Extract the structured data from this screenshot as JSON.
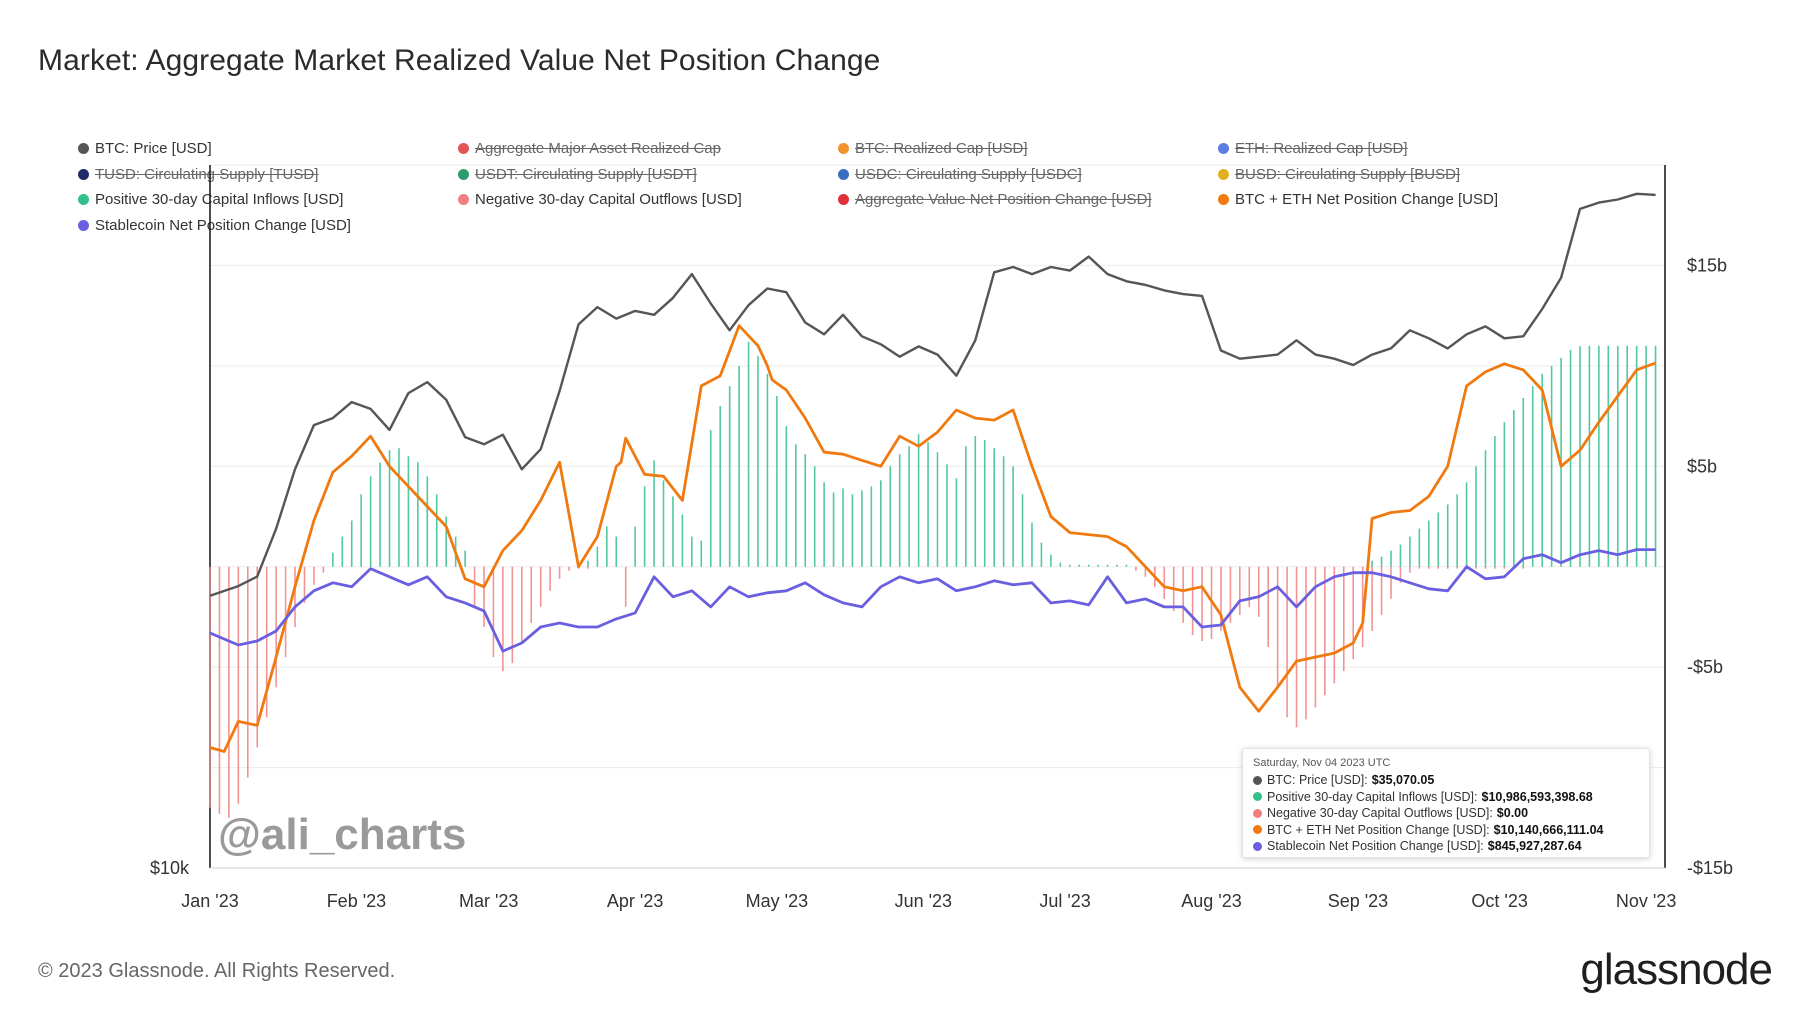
{
  "title": "Market: Aggregate Market Realized Value Net Position Change",
  "footer": "© 2023 Glassnode. All Rights Reserved.",
  "brand": "glassnode",
  "watermark": "@ali_charts",
  "legend": [
    {
      "label": "BTC: Price [USD]",
      "color": "#555555",
      "active": true
    },
    {
      "label": "Aggregate Major Asset Realized Cap",
      "color": "#e25555",
      "active": false
    },
    {
      "label": "BTC: Realized Cap [USD]",
      "color": "#f0932b",
      "active": false
    },
    {
      "label": "ETH: Realized Cap [USD]",
      "color": "#5b7de0",
      "active": false
    },
    {
      "label": "TUSD: Circulating Supply [TUSD]",
      "color": "#1f2a6b",
      "active": false
    },
    {
      "label": "USDT: Circulating Supply [USDT]",
      "color": "#2a9d6f",
      "active": false
    },
    {
      "label": "USDC: Circulating Supply [USDC]",
      "color": "#3a6fc0",
      "active": false
    },
    {
      "label": "BUSD: Circulating Supply [BUSD]",
      "color": "#e0b020",
      "active": false
    },
    {
      "label": "Positive 30-day Capital Inflows [USD]",
      "color": "#33c08a",
      "active": true
    },
    {
      "label": "Negative 30-day Capital Outflows [USD]",
      "color": "#f08080",
      "active": true
    },
    {
      "label": "Aggregate Value Net Position Change [USD]",
      "color": "#e0303a",
      "active": false
    },
    {
      "label": "BTC + ETH Net Position Change [USD]",
      "color": "#f07a10",
      "active": true
    },
    {
      "label": "Stablecoin Net Position Change [USD]",
      "color": "#6a5fe0",
      "active": true
    }
  ],
  "tooltip": {
    "date": "Saturday, Nov 04 2023 UTC",
    "rows": [
      {
        "label": "BTC: Price [USD]:",
        "value": "$35,070.05",
        "color": "#555555"
      },
      {
        "label": "Positive 30-day Capital Inflows [USD]:",
        "value": "$10,986,593,398.68",
        "color": "#33c08a"
      },
      {
        "label": "Negative 30-day Capital Outflows [USD]:",
        "value": "$0.00",
        "color": "#f08080"
      },
      {
        "label": "BTC + ETH Net Position Change [USD]:",
        "value": "$10,140,666,111.04",
        "color": "#f07a10"
      },
      {
        "label": "Stablecoin Net Position Change [USD]:",
        "value": "$845,927,287.64",
        "color": "#6a5fe0"
      }
    ]
  },
  "chart_data": {
    "type": "line",
    "title": "Market: Aggregate Market Realized Value Net Position Change",
    "x_ticks": [
      "Jan '23",
      "Feb '23",
      "Mar '23",
      "Apr '23",
      "May '23",
      "Jun '23",
      "Jul '23",
      "Aug '23",
      "Sep '23",
      "Oct '23",
      "Nov '23"
    ],
    "x_range_days": [
      0,
      308
    ],
    "left_axis": {
      "label": "$10k",
      "scale": "log",
      "ylim": [
        10000,
        37000
      ]
    },
    "right_axis": {
      "ticks": [
        "$15b",
        "$5b",
        "-$5b",
        "-$15b"
      ],
      "tick_values": [
        15,
        5,
        -5,
        -15
      ],
      "ylim": [
        -15,
        20
      ],
      "unit": "billion USD"
    },
    "series": [
      {
        "name": "BTC: Price [USD]",
        "axis": "left",
        "color": "#555555",
        "x": [
          0,
          6,
          10,
          14,
          18,
          22,
          26,
          30,
          34,
          38,
          42,
          46,
          50,
          54,
          58,
          62,
          66,
          70,
          74,
          78,
          82,
          86,
          90,
          94,
          98,
          102,
          106,
          110,
          114,
          118,
          122,
          126,
          130,
          134,
          138,
          142,
          146,
          150,
          154,
          158,
          162,
          166,
          170,
          174,
          178,
          182,
          186,
          190,
          194,
          198,
          202,
          206,
          210,
          214,
          218,
          222,
          226,
          230,
          234,
          238,
          242,
          246,
          250,
          254,
          258,
          262,
          266,
          270,
          274,
          278,
          282,
          286,
          290,
          294,
          298,
          302,
          306
        ],
        "values": [
          16600,
          16900,
          17200,
          18800,
          21000,
          22800,
          23100,
          23800,
          23500,
          22600,
          24200,
          24700,
          23900,
          22300,
          22000,
          22400,
          21000,
          21800,
          24300,
          27500,
          28400,
          27800,
          28200,
          28000,
          28900,
          30200,
          28600,
          27200,
          28500,
          29400,
          29200,
          27600,
          27000,
          28000,
          26900,
          26500,
          25900,
          26400,
          26000,
          25000,
          26700,
          30300,
          30600,
          30200,
          30600,
          30400,
          31200,
          30200,
          29800,
          29600,
          29300,
          29100,
          29000,
          26200,
          25800,
          25900,
          26000,
          26700,
          26000,
          25800,
          25500,
          26000,
          26300,
          27200,
          26800,
          26300,
          27000,
          27400,
          26800,
          26900,
          28300,
          30000,
          34100,
          34500,
          34700,
          35070,
          35000
        ]
      },
      {
        "name": "BTC + ETH Net Position Change [USD]",
        "axis": "right",
        "color": "#f07a10",
        "x": [
          0,
          3,
          6,
          10,
          14,
          18,
          22,
          26,
          30,
          34,
          38,
          42,
          46,
          50,
          54,
          58,
          62,
          66,
          70,
          74,
          78,
          82,
          86,
          87,
          88,
          92,
          96,
          100,
          104,
          108,
          112,
          116,
          118,
          119,
          122,
          126,
          130,
          134,
          138,
          142,
          146,
          150,
          154,
          158,
          162,
          166,
          170,
          174,
          178,
          182,
          186,
          190,
          194,
          198,
          202,
          206,
          210,
          214,
          218,
          222,
          226,
          230,
          234,
          238,
          242,
          244,
          246,
          250,
          254,
          258,
          262,
          266,
          270,
          274,
          278,
          282,
          286,
          290,
          294,
          298,
          302,
          306
        ],
        "values": [
          -9.0,
          -9.2,
          -7.7,
          -7.9,
          -4.5,
          -1.0,
          2.3,
          4.7,
          5.5,
          6.5,
          5.0,
          4.0,
          3.0,
          2.0,
          -0.6,
          -1.0,
          0.8,
          1.8,
          3.3,
          5.2,
          0.0,
          1.5,
          5.0,
          5.2,
          6.4,
          4.6,
          4.5,
          3.3,
          9.0,
          9.5,
          12.0,
          11.0,
          10.0,
          9.3,
          8.8,
          7.4,
          5.7,
          5.6,
          5.3,
          5.0,
          6.5,
          6.0,
          6.7,
          7.8,
          7.4,
          7.3,
          7.8,
          5.0,
          2.5,
          1.7,
          1.6,
          1.5,
          1.0,
          0.0,
          -1.0,
          -1.2,
          -1.0,
          -2.4,
          -6.0,
          -7.2,
          -6.0,
          -4.7,
          -4.5,
          -4.3,
          -3.8,
          -2.8,
          2.4,
          2.7,
          2.8,
          3.5,
          5.0,
          9.0,
          9.7,
          10.1,
          9.8,
          8.8,
          5.0,
          5.8,
          7.2,
          8.5,
          9.8,
          10.14
        ]
      },
      {
        "name": "Stablecoin Net Position Change [USD]",
        "axis": "right",
        "color": "#6a5fe0",
        "x": [
          0,
          6,
          10,
          14,
          18,
          22,
          26,
          30,
          34,
          38,
          42,
          46,
          50,
          54,
          58,
          62,
          66,
          70,
          74,
          78,
          82,
          86,
          90,
          94,
          98,
          102,
          106,
          110,
          114,
          118,
          122,
          126,
          130,
          134,
          138,
          142,
          146,
          150,
          154,
          158,
          162,
          166,
          170,
          174,
          178,
          182,
          186,
          190,
          194,
          198,
          202,
          206,
          210,
          214,
          218,
          222,
          226,
          230,
          234,
          238,
          242,
          246,
          250,
          254,
          258,
          262,
          266,
          270,
          274,
          278,
          282,
          286,
          290,
          294,
          298,
          302,
          306
        ],
        "values": [
          -3.3,
          -3.9,
          -3.7,
          -3.2,
          -2.0,
          -1.2,
          -0.8,
          -1.0,
          -0.1,
          -0.5,
          -0.9,
          -0.5,
          -1.5,
          -1.8,
          -2.2,
          -4.2,
          -3.8,
          -3.0,
          -2.8,
          -3.0,
          -3.0,
          -2.6,
          -2.3,
          -0.5,
          -1.5,
          -1.2,
          -2.0,
          -1.0,
          -1.5,
          -1.3,
          -1.2,
          -0.8,
          -1.4,
          -1.8,
          -2.0,
          -1.0,
          -0.5,
          -0.8,
          -0.6,
          -1.2,
          -1.0,
          -0.7,
          -0.9,
          -0.8,
          -1.8,
          -1.7,
          -1.9,
          -0.5,
          -1.8,
          -1.6,
          -2.0,
          -2.0,
          -3.0,
          -2.9,
          -1.7,
          -1.5,
          -1.0,
          -2.0,
          -1.0,
          -0.5,
          -0.3,
          -0.3,
          -0.5,
          -0.8,
          -1.1,
          -1.2,
          0.0,
          -0.6,
          -0.5,
          0.4,
          0.6,
          0.2,
          0.6,
          0.8,
          0.6,
          0.85,
          0.85
        ]
      },
      {
        "name": "Positive 30-day Capital Inflows [USD]",
        "axis": "right",
        "color": "#33c08a",
        "type": "bar",
        "x": [
          26,
          28,
          30,
          32,
          34,
          36,
          38,
          40,
          42,
          44,
          46,
          48,
          50,
          52,
          54,
          80,
          82,
          84,
          86,
          90,
          92,
          94,
          96,
          98,
          100,
          102,
          104,
          106,
          108,
          110,
          112,
          114,
          116,
          118,
          120,
          122,
          124,
          126,
          128,
          130,
          132,
          134,
          136,
          138,
          140,
          142,
          144,
          146,
          148,
          150,
          152,
          154,
          156,
          158,
          160,
          162,
          164,
          166,
          168,
          170,
          172,
          174,
          176,
          178,
          180,
          182,
          184,
          186,
          188,
          190,
          192,
          194,
          246,
          248,
          250,
          252,
          254,
          256,
          258,
          260,
          262,
          264,
          266,
          268,
          270,
          272,
          274,
          276,
          278,
          280,
          282,
          284,
          286,
          288,
          290,
          292,
          294,
          296,
          298,
          300,
          302,
          304,
          306
        ],
        "values": [
          0.7,
          1.5,
          2.3,
          3.6,
          4.5,
          5.2,
          5.8,
          5.9,
          5.5,
          5.2,
          4.5,
          3.6,
          2.5,
          1.5,
          0.8,
          0.3,
          1.0,
          2.0,
          1.5,
          2.0,
          4.0,
          5.3,
          4.3,
          3.5,
          2.6,
          1.5,
          1.3,
          6.8,
          8.0,
          9.0,
          10.0,
          11.2,
          10.5,
          9.6,
          8.5,
          7.0,
          6.1,
          5.6,
          5.0,
          4.2,
          3.7,
          3.9,
          3.6,
          3.8,
          4.0,
          4.3,
          5.0,
          5.6,
          6.0,
          6.6,
          6.2,
          5.7,
          5.1,
          4.4,
          6.0,
          6.5,
          6.3,
          5.9,
          5.5,
          5.0,
          3.6,
          2.2,
          1.2,
          0.6,
          0.2,
          0.1,
          0.1,
          0.1,
          0.1,
          0.1,
          0.1,
          0.1,
          0.3,
          0.5,
          0.8,
          1.1,
          1.5,
          1.9,
          2.3,
          2.7,
          3.1,
          3.6,
          4.2,
          5.0,
          5.8,
          6.5,
          7.2,
          7.8,
          8.4,
          9.0,
          9.6,
          10.0,
          10.4,
          10.8,
          10.98,
          11.0,
          11.0,
          11.0,
          11.0,
          11.0,
          11.0,
          11.0,
          11.0
        ]
      },
      {
        "name": "Negative 30-day Capital Outflows [USD]",
        "axis": "right",
        "color": "#f08080",
        "type": "bar",
        "x": [
          0,
          2,
          4,
          6,
          8,
          10,
          12,
          14,
          16,
          18,
          20,
          22,
          24,
          56,
          58,
          60,
          62,
          64,
          66,
          68,
          70,
          72,
          74,
          76,
          78,
          80,
          88,
          196,
          198,
          200,
          202,
          204,
          206,
          208,
          210,
          212,
          214,
          216,
          218,
          220,
          222,
          224,
          226,
          228,
          230,
          232,
          234,
          236,
          238,
          240,
          242,
          244,
          246,
          248,
          250,
          252,
          254,
          256,
          258,
          260,
          262,
          264,
          266,
          268,
          270,
          272,
          274,
          276,
          278
        ],
        "values": [
          -12.0,
          -12.3,
          -12.5,
          -11.8,
          -10.5,
          -9.0,
          -7.5,
          -6.0,
          -4.5,
          -3.0,
          -1.8,
          -0.9,
          -0.3,
          -2.0,
          -3.0,
          -4.5,
          -5.2,
          -4.8,
          -3.8,
          -2.8,
          -2.0,
          -1.2,
          -0.6,
          -0.2,
          -0.1,
          -0.1,
          -2.0,
          -0.2,
          -0.5,
          -1.0,
          -1.6,
          -2.2,
          -2.8,
          -3.4,
          -3.7,
          -3.6,
          -3.2,
          -2.8,
          -2.4,
          -2.0,
          -2.5,
          -4.0,
          -6.0,
          -7.5,
          -8.0,
          -7.6,
          -7.0,
          -6.4,
          -5.8,
          -5.2,
          -4.6,
          -4.0,
          -3.2,
          -2.4,
          -1.6,
          -0.8,
          -0.3,
          -0.1,
          -0.1,
          -0.1,
          -0.1,
          -0.1,
          -0.1,
          -0.1,
          -0.1,
          -0.1,
          -0.1,
          -0.1,
          -0.1
        ]
      }
    ]
  }
}
